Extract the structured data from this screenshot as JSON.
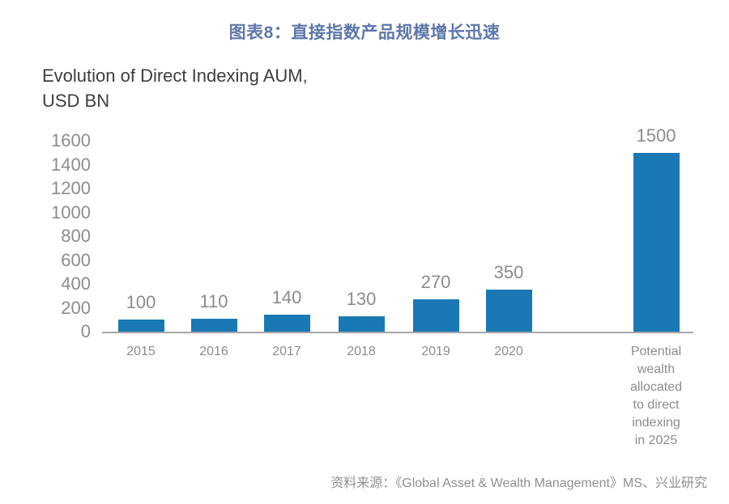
{
  "figure": {
    "title": "图表8：直接指数产品规模增长迅速"
  },
  "chart": {
    "title_line1": "Evolution of Direct Indexing AUM,",
    "title_line2": "USD BN"
  },
  "source": "资料来源：《Global Asset & Wealth Management》MS、兴业研究",
  "colors": {
    "bar": "#1a79b4",
    "figure_title": "#5e77aa",
    "chart_title": "#3d3d3d",
    "labels": "#8c8c8c",
    "axis_line": "#a8a8a8"
  },
  "chart_data": {
    "type": "bar",
    "title": "Evolution of Direct Indexing AUM, USD BN",
    "categories": [
      "2015",
      "2016",
      "2017",
      "2018",
      "2019",
      "2020",
      "Potential\nwealth\nallocated\nto  direct\nindexing\nin 2025"
    ],
    "values": [
      100,
      110,
      140,
      130,
      270,
      350,
      1500
    ],
    "ylabel": "",
    "xlabel": "",
    "ylim": [
      0,
      1600
    ],
    "yticks": [
      0,
      200,
      400,
      600,
      800,
      1000,
      1200,
      1400,
      1600
    ],
    "grid": false,
    "legend": false,
    "bar_color": "#1a79b4",
    "data_labels_shown": true
  }
}
